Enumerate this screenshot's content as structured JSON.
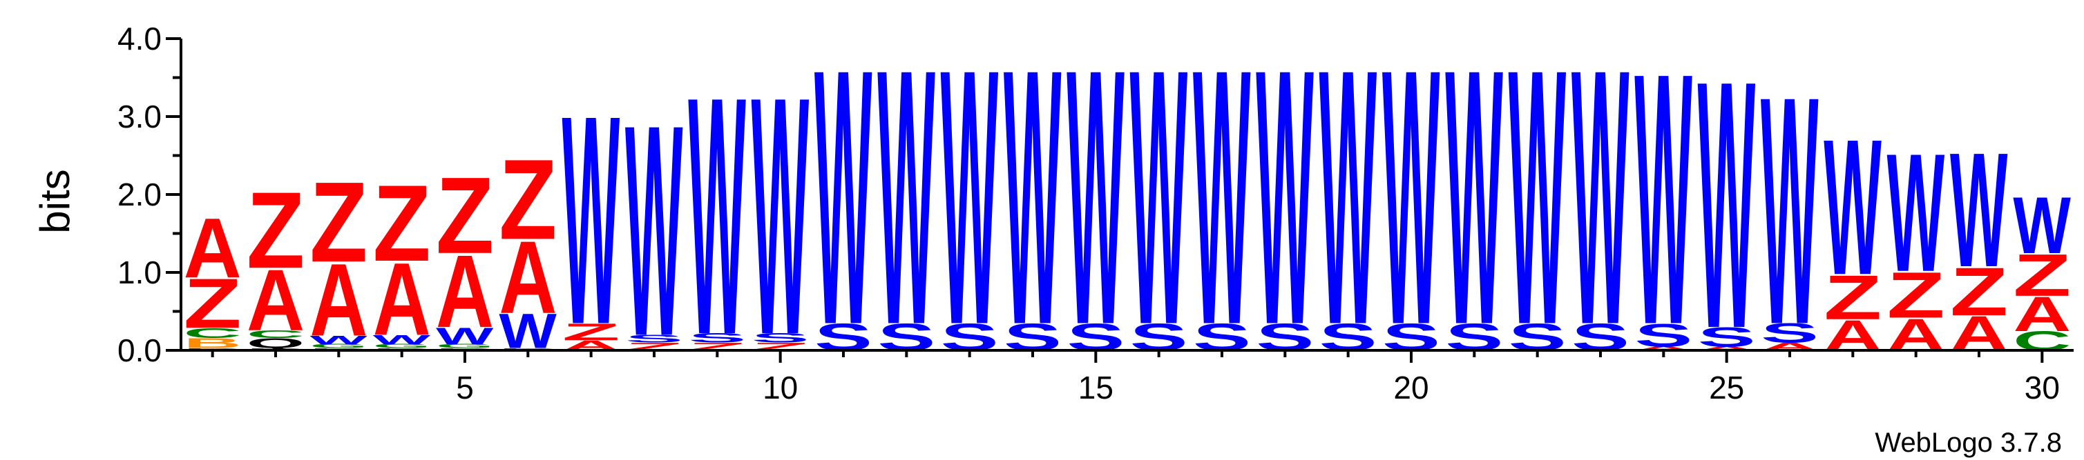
{
  "chart_data": {
    "type": "sequence-logo",
    "ylabel": "bits",
    "ylim": [
      0,
      4.0
    ],
    "y_ticks": [
      "0.0",
      "1.0",
      "2.0",
      "3.0",
      "4.0"
    ],
    "x_ticks": [
      "5",
      "10",
      "15",
      "20",
      "25",
      "30"
    ],
    "x_range": [
      1,
      30
    ],
    "credit": "WebLogo 3.7.8",
    "colors": {
      "A": "#ff0000",
      "Z": "#ff0000",
      "W": "#0000ff",
      "S": "#0000ff",
      "C": "#008000",
      "G": "#008000",
      "B": "#ff8c00",
      "D": "#ff0000"
    },
    "positions": [
      [
        [
          "D",
          0.03
        ],
        [
          "B",
          0.13
        ],
        [
          "C",
          0.13
        ],
        [
          "Z",
          0.65
        ],
        [
          "A",
          0.78
        ]
      ],
      [
        [
          "D",
          0.03
        ],
        [
          "Q",
          0.13
        ],
        [
          "C",
          0.1
        ],
        [
          "A",
          0.8
        ],
        [
          "Z",
          1.0
        ]
      ],
      [
        [
          "D",
          0.03
        ],
        [
          "G",
          0.05
        ],
        [
          "W",
          0.11
        ],
        [
          "A",
          0.95
        ],
        [
          "Z",
          1.05
        ]
      ],
      [
        [
          "D",
          0.03
        ],
        [
          "G",
          0.05
        ],
        [
          "W",
          0.12
        ],
        [
          "A",
          0.95
        ],
        [
          "Z",
          1.0
        ]
      ],
      [
        [
          "D",
          0.03
        ],
        [
          "G",
          0.05
        ],
        [
          "W",
          0.22
        ],
        [
          "A",
          0.95
        ],
        [
          "Z",
          1.0
        ]
      ],
      [
        [
          "D",
          0.03
        ],
        [
          "W",
          0.45
        ],
        [
          "A",
          0.95
        ],
        [
          "Z",
          1.05
        ]
      ],
      [
        [
          "A",
          0.13
        ],
        [
          "Z",
          0.22
        ],
        [
          "W",
          2.74
        ]
      ],
      [
        [
          "Z",
          0.1
        ],
        [
          "S",
          0.1
        ],
        [
          "W",
          2.77
        ]
      ],
      [
        [
          "Z",
          0.1
        ],
        [
          "S",
          0.12
        ],
        [
          "W",
          3.12
        ]
      ],
      [
        [
          "Z",
          0.1
        ],
        [
          "S",
          0.12
        ],
        [
          "W",
          3.12
        ]
      ],
      [
        [
          "S",
          0.35
        ],
        [
          "W",
          3.35
        ]
      ],
      [
        [
          "S",
          0.35
        ],
        [
          "W",
          3.35
        ]
      ],
      [
        [
          "S",
          0.35
        ],
        [
          "W",
          3.35
        ]
      ],
      [
        [
          "S",
          0.35
        ],
        [
          "W",
          3.35
        ]
      ],
      [
        [
          "S",
          0.35
        ],
        [
          "W",
          3.35
        ]
      ],
      [
        [
          "S",
          0.35
        ],
        [
          "W",
          3.35
        ]
      ],
      [
        [
          "S",
          0.35
        ],
        [
          "W",
          3.35
        ]
      ],
      [
        [
          "S",
          0.35
        ],
        [
          "W",
          3.35
        ]
      ],
      [
        [
          "S",
          0.35
        ],
        [
          "W",
          3.35
        ]
      ],
      [
        [
          "S",
          0.35
        ],
        [
          "W",
          3.35
        ]
      ],
      [
        [
          "S",
          0.35
        ],
        [
          "W",
          3.35
        ]
      ],
      [
        [
          "S",
          0.35
        ],
        [
          "W",
          3.35
        ]
      ],
      [
        [
          "S",
          0.35
        ],
        [
          "W",
          3.35
        ]
      ],
      [
        [
          "A",
          0.05
        ],
        [
          "S",
          0.3
        ],
        [
          "W",
          3.3
        ]
      ],
      [
        [
          "A",
          0.05
        ],
        [
          "S",
          0.25
        ],
        [
          "W",
          3.25
        ]
      ],
      [
        [
          "A",
          0.1
        ],
        [
          "S",
          0.25
        ],
        [
          "W",
          2.99
        ]
      ],
      [
        [
          "A",
          0.4
        ],
        [
          "Z",
          0.58
        ],
        [
          "W",
          1.78
        ]
      ],
      [
        [
          "A",
          0.42
        ],
        [
          "Z",
          0.6
        ],
        [
          "W",
          1.55
        ]
      ],
      [
        [
          "A",
          0.45
        ],
        [
          "Z",
          0.63
        ],
        [
          "W",
          1.5
        ]
      ],
      [
        [
          "C",
          0.25
        ],
        [
          "A",
          0.45
        ],
        [
          "Z",
          0.55
        ],
        [
          "W",
          0.74
        ]
      ]
    ]
  }
}
